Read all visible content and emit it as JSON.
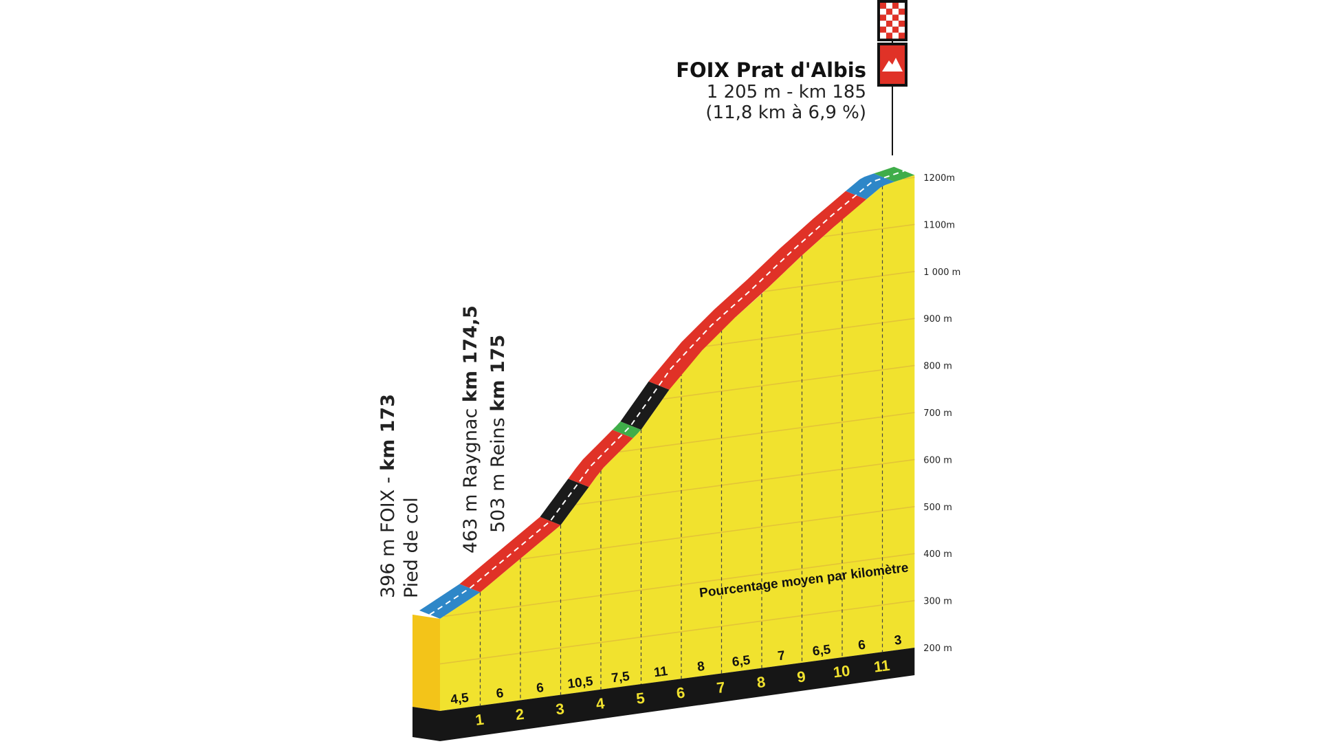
{
  "finish": {
    "name_bold": "FOIX",
    "name_rest": " Prat d'Albis",
    "detail": "1 205 m - km 185",
    "climb": "(11,8 km à 6,9 %)",
    "icons": [
      "checkered-flag-icon",
      "mountain-icon"
    ]
  },
  "start_labels": {
    "line1_prefix": "396 m FOIX - ",
    "line1_bold": "km 173",
    "line2": "Pied de col",
    "line3_prefix": "463 m Raygnac ",
    "line3_bold": "km 174,5",
    "line4_prefix": "503 m Reins ",
    "line4_bold": "km 175"
  },
  "legend_note": "Pourcentage moyen par kilomètre",
  "colors": {
    "profile_fill": "#f1e22e",
    "profile_side": "#f3c419",
    "base": "#161616",
    "band_gentle": "#2e87c8",
    "band_moderate": "#e03227",
    "band_steep": "#1b1b1b",
    "band_flat": "#3fad49"
  },
  "chart_data": {
    "type": "area",
    "title": "",
    "xlabel": "",
    "ylabel": "",
    "ylim": [
      200,
      1200
    ],
    "y_ticks": [
      {
        "value": 1200,
        "label": "1200m"
      },
      {
        "value": 1100,
        "label": "1100m"
      },
      {
        "value": 1000,
        "label": "1 000 m"
      },
      {
        "value": 900,
        "label": "900 m"
      },
      {
        "value": 800,
        "label": "800 m"
      },
      {
        "value": 700,
        "label": "700 m"
      },
      {
        "value": 600,
        "label": "600 m"
      },
      {
        "value": 500,
        "label": "500 m"
      },
      {
        "value": 400,
        "label": "400 m"
      },
      {
        "value": 300,
        "label": "300 m"
      },
      {
        "value": 200,
        "label": "200 m"
      }
    ],
    "km_markers": [
      "1",
      "2",
      "3",
      "4",
      "5",
      "6",
      "7",
      "8",
      "9",
      "10",
      "11"
    ],
    "segments": [
      {
        "gradient": "4,5",
        "category": "gentle"
      },
      {
        "gradient": "6",
        "category": "moderate"
      },
      {
        "gradient": "6",
        "category": "moderate"
      },
      {
        "gradient": "10,5",
        "category": "steep"
      },
      {
        "gradient": "7,5",
        "category": "moderate"
      },
      {
        "gradient": "11",
        "category": "steep"
      },
      {
        "gradient": "8",
        "category": "moderate"
      },
      {
        "gradient": "6,5",
        "category": "moderate"
      },
      {
        "gradient": "7",
        "category": "moderate"
      },
      {
        "gradient": "6,5",
        "category": "moderate"
      },
      {
        "gradient": "6",
        "category": "moderate"
      },
      {
        "gradient": "3",
        "category": "gentle"
      }
    ],
    "elevation_profile": [
      {
        "km": 0,
        "alt": 396
      },
      {
        "km": 1,
        "alt": 441
      },
      {
        "km": 2,
        "alt": 501
      },
      {
        "km": 3,
        "alt": 561
      },
      {
        "km": 3.7,
        "alt": 634
      },
      {
        "km": 4,
        "alt": 666
      },
      {
        "km": 4.9,
        "alt": 733
      },
      {
        "km": 5,
        "alt": 741
      },
      {
        "km": 5.7,
        "alt": 818
      },
      {
        "km": 6,
        "alt": 851
      },
      {
        "km": 7,
        "alt": 931
      },
      {
        "km": 8,
        "alt": 996
      },
      {
        "km": 9,
        "alt": 1066
      },
      {
        "km": 10,
        "alt": 1131
      },
      {
        "km": 11,
        "alt": 1191
      },
      {
        "km": 11.8,
        "alt": 1205
      }
    ]
  }
}
